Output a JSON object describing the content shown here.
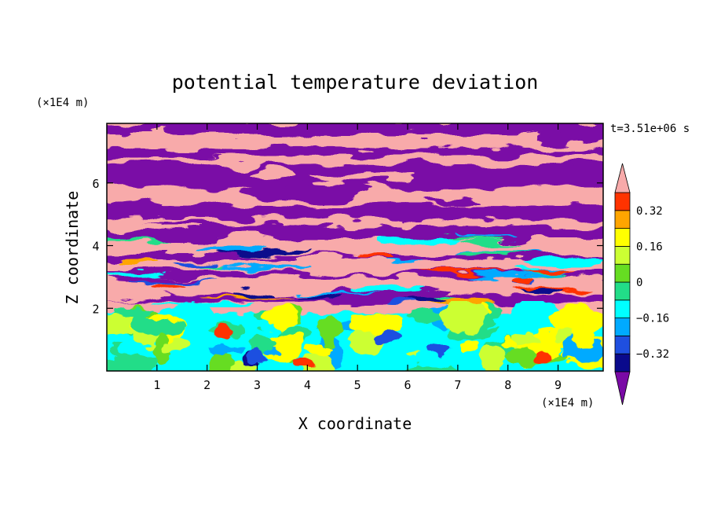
{
  "chart_data": {
    "type": "heatmap",
    "title": "potential temperature deviation",
    "xlabel": "X coordinate",
    "ylabel": "Z coordinate",
    "x_unit": "(×1E4 m)",
    "y_unit": "(×1E4 m)",
    "time_label": "t=3.51e+06 s",
    "xlim": [
      0,
      9.9
    ],
    "ylim": [
      0,
      7.9
    ],
    "x_ticks": [
      1,
      2,
      3,
      4,
      5,
      6,
      7,
      8,
      9
    ],
    "y_ticks": [
      2,
      4,
      6
    ],
    "colorbar": {
      "levels": [
        -0.4,
        -0.32,
        -0.24,
        -0.16,
        -0.08,
        0,
        0.08,
        0.16,
        0.24,
        0.32,
        0.4
      ],
      "labeled_levels": [
        0.32,
        0.16,
        0,
        -0.16,
        -0.32
      ],
      "colors_low_to_high": [
        "#0a0a8c",
        "#1f4fe0",
        "#00aaff",
        "#00ffff",
        "#22dd88",
        "#66dd22",
        "#ccff33",
        "#ffff00",
        "#ffa500",
        "#ff3300"
      ],
      "under_color": "#7a0aa6",
      "over_color": "#f8aaaa",
      "extend": "both"
    },
    "grid": false,
    "legend": "colorbar-right"
  }
}
